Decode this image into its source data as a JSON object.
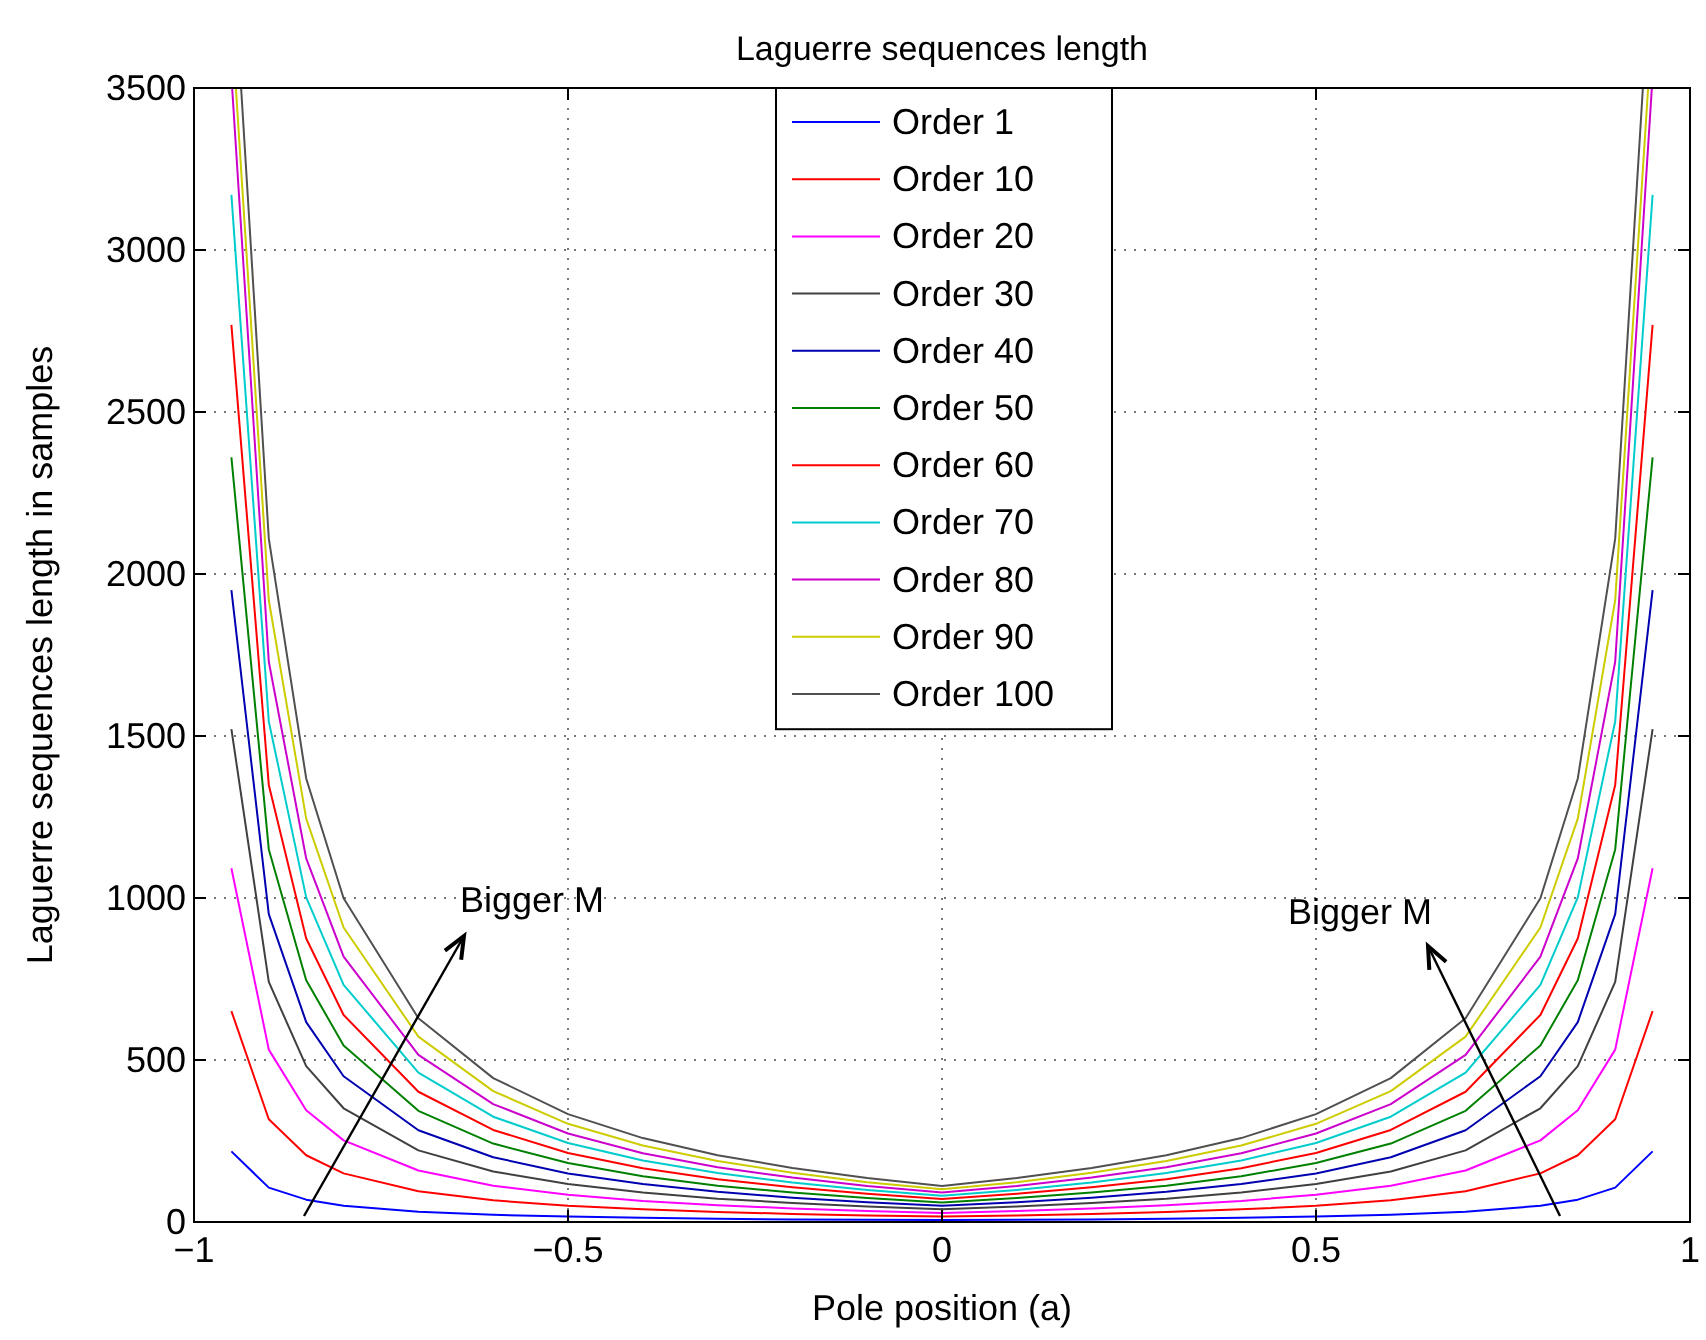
{
  "chart_data": {
    "type": "line",
    "title": "Laguerre sequences length",
    "xlabel": "Pole position (a)",
    "ylabel": "Laguerre sequences length in samples",
    "x": [
      -0.95,
      -0.9,
      -0.85,
      -0.8,
      -0.7,
      -0.6,
      -0.5,
      -0.4,
      -0.3,
      -0.2,
      -0.1,
      0,
      0.1,
      0.2,
      0.3,
      0.4,
      0.5,
      0.6,
      0.7,
      0.8,
      0.85,
      0.9,
      0.95
    ],
    "series": [
      {
        "name": "Order 1",
        "color": "#0000ff",
        "values": [
          218,
          106,
          69,
          50,
          32,
          22,
          17,
          13,
          10,
          8,
          7,
          6,
          7,
          8,
          10,
          13,
          17,
          22,
          32,
          50,
          69,
          106,
          218
        ]
      },
      {
        "name": "Order 10",
        "color": "#ff0000",
        "values": [
          651,
          317,
          206,
          150,
          95,
          67,
          50,
          39,
          31,
          25,
          20,
          17,
          20,
          25,
          31,
          39,
          50,
          67,
          95,
          150,
          206,
          317,
          651
        ]
      },
      {
        "name": "Order 20",
        "color": "#ff00ff",
        "values": [
          1092,
          532,
          345,
          252,
          159,
          112,
          84,
          65,
          52,
          42,
          34,
          28,
          34,
          42,
          52,
          65,
          84,
          112,
          159,
          252,
          345,
          532,
          1092
        ]
      },
      {
        "name": "Order 30",
        "color": "#404040",
        "values": [
          1521,
          741,
          481,
          351,
          221,
          156,
          117,
          91,
          72,
          59,
          48,
          39,
          48,
          59,
          72,
          91,
          117,
          156,
          221,
          351,
          481,
          741,
          1521
        ]
      },
      {
        "name": "Order 40",
        "color": "#0000b0",
        "values": [
          1950,
          950,
          617,
          450,
          283,
          200,
          150,
          117,
          93,
          75,
          61,
          50,
          61,
          75,
          93,
          117,
          150,
          200,
          283,
          450,
          617,
          950,
          1950
        ]
      },
      {
        "name": "Order 50",
        "color": "#008000",
        "values": [
          2360,
          1150,
          746,
          545,
          343,
          242,
          182,
          141,
          112,
          91,
          74,
          60,
          74,
          91,
          112,
          141,
          182,
          242,
          343,
          545,
          746,
          1150,
          2360
        ]
      },
      {
        "name": "Order 60",
        "color": "#ff0000",
        "values": [
          2769,
          1349,
          875,
          639,
          402,
          284,
          213,
          166,
          132,
          107,
          87,
          71,
          87,
          107,
          132,
          166,
          213,
          284,
          402,
          639,
          875,
          1349,
          2769
        ]
      },
      {
        "name": "Order 70",
        "color": "#00cccc",
        "values": [
          3170,
          1545,
          1002,
          732,
          461,
          325,
          244,
          190,
          151,
          122,
          99,
          81,
          99,
          122,
          151,
          190,
          244,
          325,
          461,
          732,
          1002,
          1545,
          3170
        ]
      },
      {
        "name": "Order 80",
        "color": "#cc00cc",
        "x": [
          -0.949,
          -0.9,
          -0.85,
          -0.8,
          -0.7,
          -0.6,
          -0.5,
          -0.4,
          -0.3,
          -0.2,
          -0.1,
          0,
          0.1,
          0.2,
          0.3,
          0.4,
          0.5,
          0.6,
          0.7,
          0.8,
          0.85,
          0.9,
          0.949
        ],
        "values": [
          3500,
          1729,
          1122,
          819,
          516,
          364,
          273,
          212,
          169,
          137,
          111,
          91,
          111,
          137,
          169,
          212,
          273,
          364,
          516,
          819,
          1122,
          1729,
          3500
        ]
      },
      {
        "name": "Order 90",
        "color": "#cccc00",
        "x": [
          -0.944,
          -0.9,
          -0.85,
          -0.8,
          -0.7,
          -0.6,
          -0.5,
          -0.4,
          -0.3,
          -0.2,
          -0.1,
          0,
          0.1,
          0.2,
          0.3,
          0.4,
          0.5,
          0.6,
          0.7,
          0.8,
          0.85,
          0.9,
          0.944
        ],
        "values": [
          3500,
          1919,
          1245,
          909,
          572,
          404,
          303,
          236,
          188,
          152,
          123,
          101,
          123,
          152,
          188,
          236,
          303,
          404,
          572,
          909,
          1245,
          1919,
          3500
        ]
      },
      {
        "name": "Order 100",
        "color": "#505050",
        "x": [
          -0.937,
          -0.9,
          -0.85,
          -0.8,
          -0.7,
          -0.6,
          -0.5,
          -0.4,
          -0.3,
          -0.2,
          -0.1,
          0,
          0.1,
          0.2,
          0.3,
          0.4,
          0.5,
          0.6,
          0.7,
          0.8,
          0.85,
          0.9,
          0.937
        ],
        "values": [
          3500,
          2109,
          1369,
          999,
          629,
          444,
          333,
          259,
          206,
          167,
          136,
          111,
          136,
          167,
          206,
          259,
          333,
          444,
          629,
          999,
          1369,
          2109,
          3500
        ]
      }
    ],
    "xlim": [
      -1,
      1
    ],
    "xticks": [
      {
        "value": -1,
        "label": "−1"
      },
      {
        "value": -0.5,
        "label": "−0.5"
      },
      0,
      0.5,
      1
    ],
    "ylim": [
      0,
      3500
    ],
    "yticks": [
      0,
      500,
      1000,
      1500,
      2000,
      2500,
      3000,
      3500
    ],
    "grid": true,
    "legend": "top",
    "line_style": "solid",
    "marker": "none",
    "annotations": [
      "Bigger M",
      "Bigger M"
    ]
  }
}
